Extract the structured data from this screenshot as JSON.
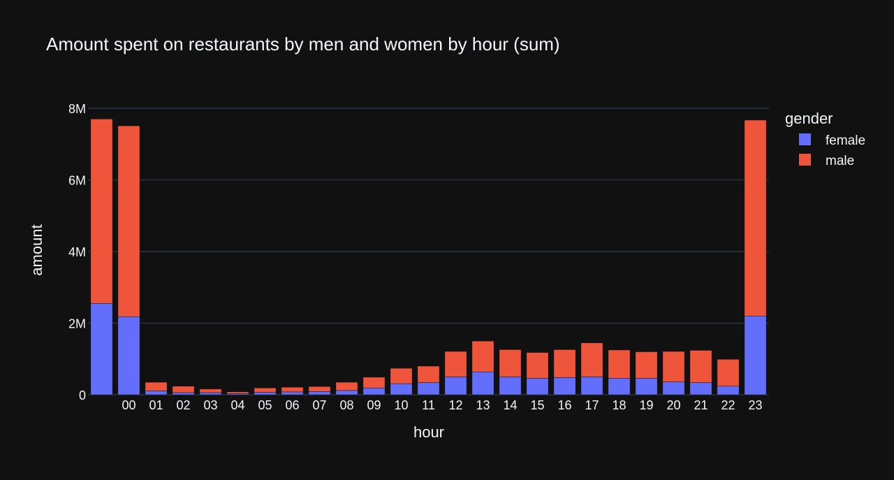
{
  "chart_data": {
    "type": "bar",
    "stacked": true,
    "title": "Amount spent on restaurants by men and women by hour (sum)",
    "xlabel": "hour",
    "ylabel": "amount",
    "ylim": [
      0,
      8000000
    ],
    "yticks": [
      {
        "value": 0,
        "label": "0"
      },
      {
        "value": 2000000,
        "label": "2M"
      },
      {
        "value": 4000000,
        "label": "4M"
      },
      {
        "value": 6000000,
        "label": "6M"
      },
      {
        "value": 8000000,
        "label": "8M"
      }
    ],
    "grid": true,
    "legend_position": "top-right",
    "legend_title": "gender",
    "categories": [
      "",
      "00",
      "01",
      "02",
      "03",
      "04",
      "05",
      "06",
      "07",
      "08",
      "09",
      "10",
      "11",
      "12",
      "13",
      "14",
      "15",
      "16",
      "17",
      "18",
      "19",
      "20",
      "21",
      "22",
      "23"
    ],
    "series": [
      {
        "name": "female",
        "color": "#636efa",
        "values": [
          2550000,
          2180000,
          110000,
          60000,
          60000,
          30000,
          70000,
          80000,
          90000,
          120000,
          190000,
          310000,
          340000,
          500000,
          640000,
          500000,
          460000,
          480000,
          500000,
          460000,
          460000,
          360000,
          340000,
          240000,
          2200000
        ]
      },
      {
        "name": "male",
        "color": "#ef553b",
        "values": [
          5150000,
          5330000,
          240000,
          180000,
          100000,
          50000,
          120000,
          130000,
          140000,
          230000,
          300000,
          430000,
          460000,
          710000,
          860000,
          760000,
          720000,
          780000,
          950000,
          790000,
          740000,
          850000,
          900000,
          750000,
          5470000
        ]
      }
    ]
  }
}
